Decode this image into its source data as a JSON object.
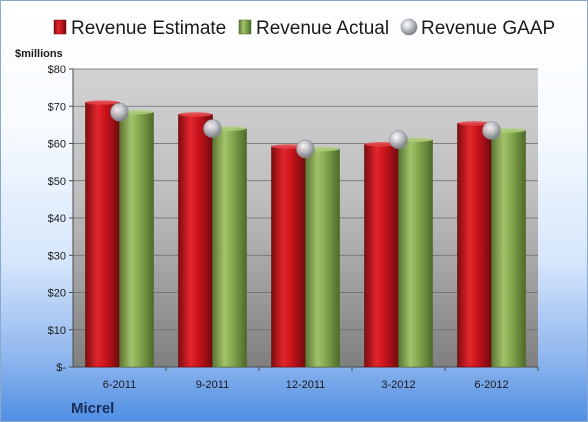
{
  "legend": {
    "estimate": "Revenue Estimate",
    "actual": "Revenue Actual",
    "gaap": "Revenue GAAP"
  },
  "unit_label": "$millions",
  "company": "Micrel",
  "colors": {
    "estimate": "#c8131b",
    "actual": "#7fa04a",
    "gaap": "#c4c8cf"
  },
  "chart_data": {
    "type": "bar",
    "categories": [
      "6-2011",
      "9-2011",
      "12-2011",
      "3-2012",
      "6-2012"
    ],
    "series": [
      {
        "name": "Revenue Estimate",
        "values": [
          71.0,
          67.8,
          59.2,
          59.8,
          65.4
        ]
      },
      {
        "name": "Revenue Actual",
        "values": [
          68.4,
          64.0,
          58.5,
          61.0,
          63.5
        ]
      },
      {
        "name": "Revenue GAAP",
        "values": [
          68.4,
          64.0,
          58.5,
          61.0,
          63.5
        ]
      }
    ],
    "ylim": [
      0,
      80
    ],
    "yticks": [
      0,
      10,
      20,
      30,
      40,
      50,
      60,
      70,
      80
    ],
    "ytick_labels": [
      "$-",
      "$10",
      "$20",
      "$30",
      "$40",
      "$50",
      "$60",
      "$70",
      "$80"
    ],
    "ylabel": "$millions",
    "grid": true,
    "legend_position": "top"
  }
}
